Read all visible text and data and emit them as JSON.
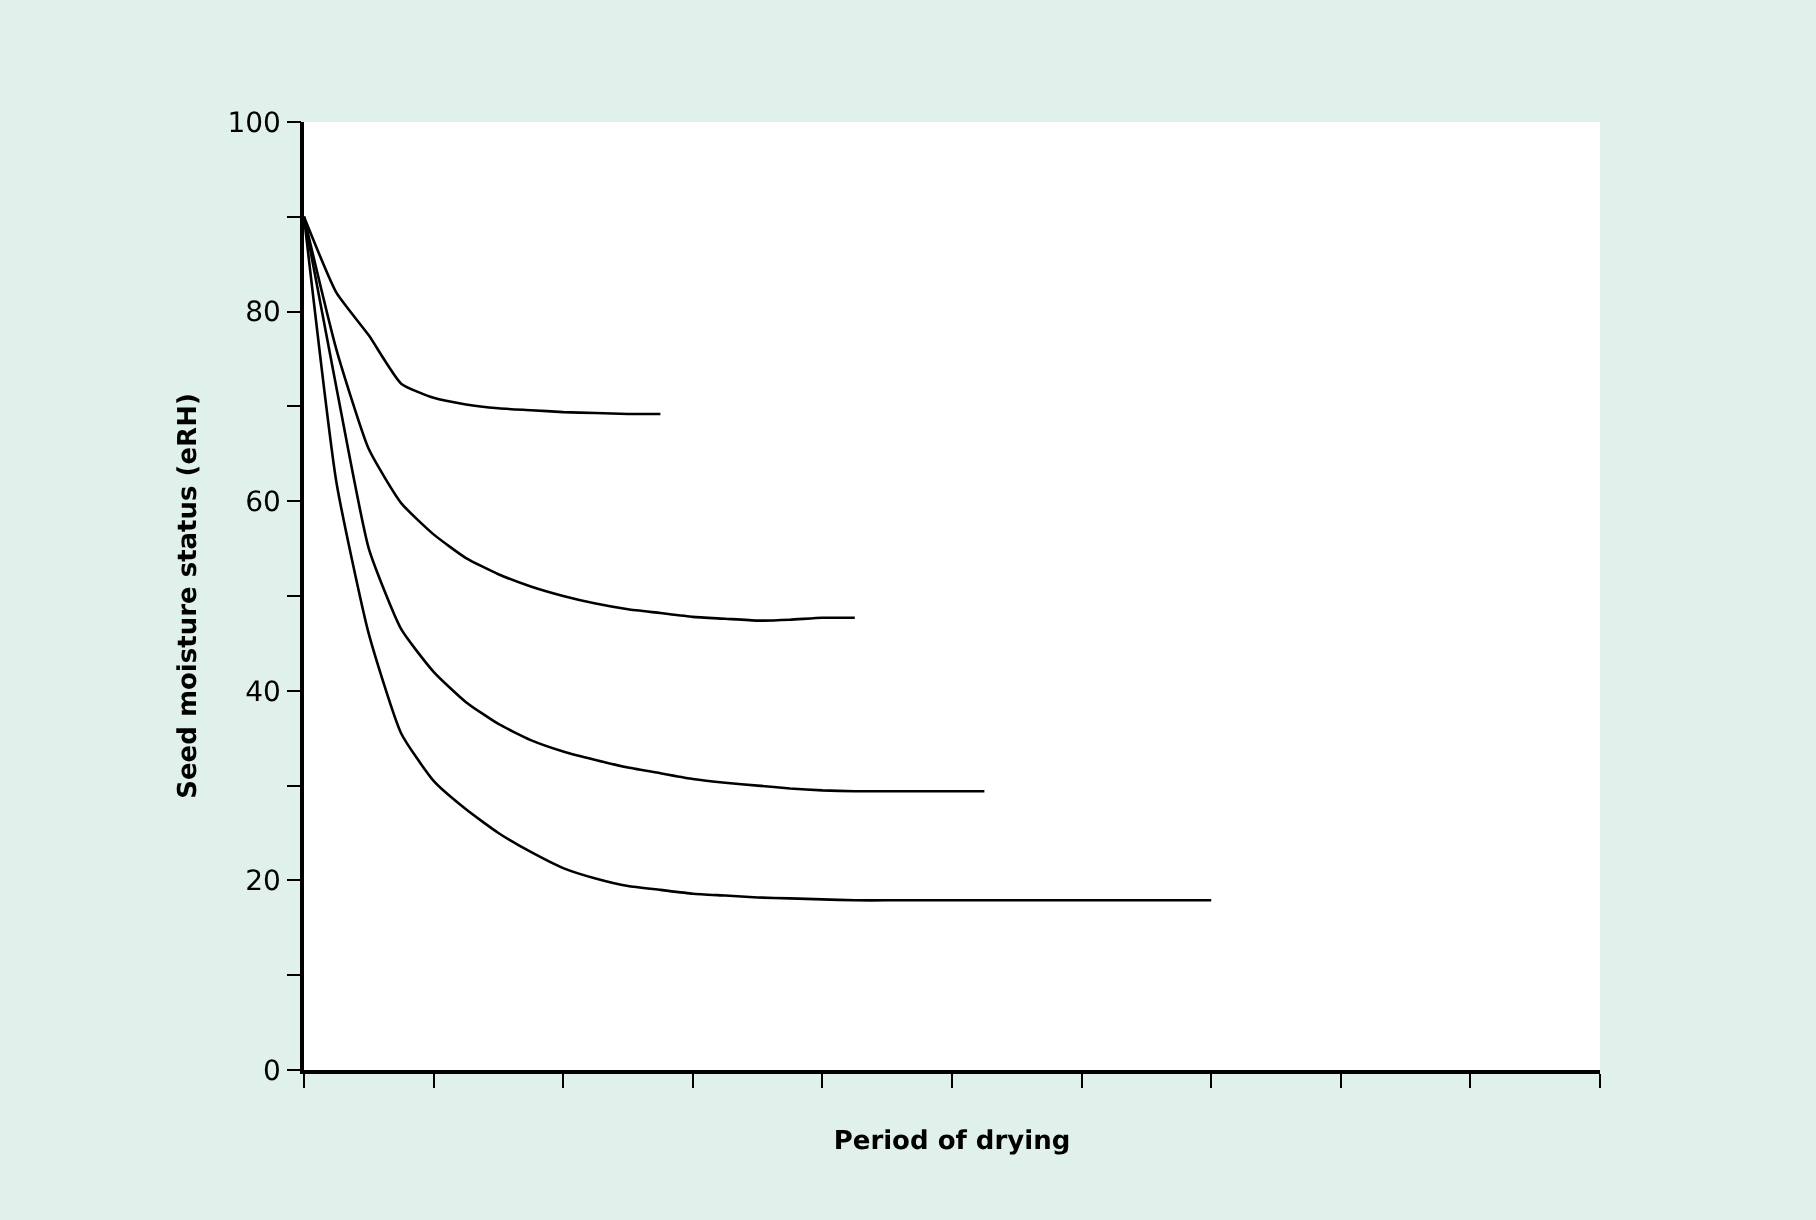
{
  "chart_data": {
    "type": "line",
    "xlabel": "Period of drying",
    "ylabel": "Seed moisture status (eRH)",
    "categories": [
      null,
      null,
      null,
      null,
      null,
      null,
      null,
      null,
      null,
      null,
      null,
      null,
      null,
      null,
      null,
      null,
      null,
      null,
      null,
      null,
      null,
      null,
      null,
      null,
      null,
      null,
      null,
      null,
      null,
      null,
      null,
      null,
      null,
      null,
      null,
      null,
      null,
      null,
      null,
      null,
      null
    ],
    "series": [
      {
        "color": "#000000",
        "values": [
          90,
          82,
          77.5,
          72.4,
          70.9,
          70.2,
          69.8,
          69.6,
          69.4,
          69.3,
          69.2,
          69.2,
          null,
          null,
          null,
          null,
          null,
          null,
          null,
          null,
          null,
          null,
          null,
          null,
          null,
          null,
          null,
          null,
          null,
          null,
          null,
          null,
          null,
          null,
          null,
          null,
          null,
          null,
          null,
          null,
          null
        ]
      },
      {
        "color": "#000000",
        "values": [
          90,
          76,
          65.5,
          59.8,
          56.5,
          54,
          52.3,
          51,
          50,
          49.2,
          48.6,
          48.2,
          47.8,
          47.6,
          47.4,
          47.5,
          47.7,
          47.7,
          null,
          null,
          null,
          null,
          null,
          null,
          null,
          null,
          null,
          null,
          null,
          null,
          null,
          null,
          null,
          null,
          null,
          null,
          null,
          null,
          null,
          null,
          null
        ]
      },
      {
        "color": "#000000",
        "values": [
          90,
          72,
          55,
          46.5,
          42,
          38.8,
          36.5,
          34.8,
          33.6,
          32.7,
          31.9,
          31.3,
          30.7,
          30.3,
          30,
          29.7,
          29.5,
          29.4,
          29.4,
          29.4,
          29.4,
          29.4,
          null,
          null,
          null,
          null,
          null,
          null,
          null,
          null,
          null,
          null,
          null,
          null,
          null,
          null,
          null,
          null,
          null,
          null,
          null
        ]
      },
      {
        "color": "#000000",
        "values": [
          90,
          62,
          46,
          35.5,
          30.5,
          27.5,
          25,
          23,
          21.3,
          20.2,
          19.4,
          19,
          18.6,
          18.4,
          18.2,
          18.1,
          18,
          17.9,
          17.9,
          17.9,
          17.9,
          17.9,
          17.9,
          17.9,
          17.9,
          17.9,
          17.9,
          17.9,
          17.9,
          null,
          null,
          null,
          null,
          null,
          null,
          null,
          null,
          null,
          null,
          null,
          null
        ]
      }
    ],
    "ylim": [
      0,
      100
    ],
    "yticks": [
      0,
      {
        "value": 10,
        "label": null
      },
      20,
      {
        "value": 30,
        "label": null
      },
      40,
      {
        "value": 50,
        "label": null
      },
      60,
      {
        "value": 70,
        "label": null
      },
      80,
      {
        "value": 90,
        "label": null
      },
      100
    ],
    "tick_labels": "y"
  }
}
